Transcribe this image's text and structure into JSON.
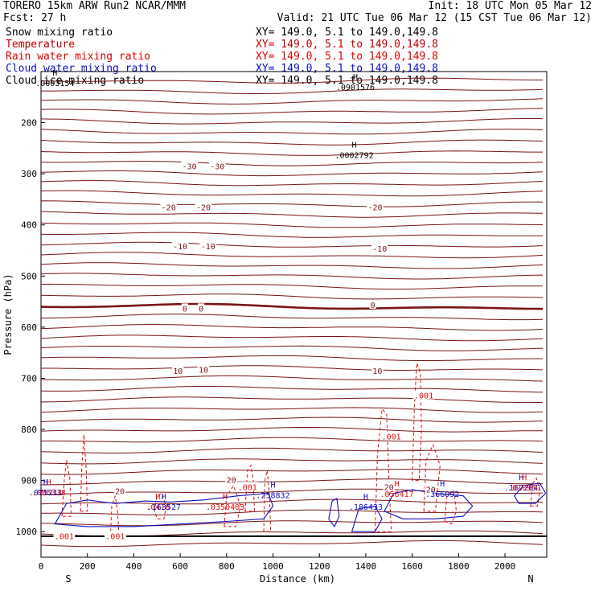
{
  "header": {
    "model": "TORERO   15km ARW   Run2    NCAR/MMM",
    "init": "Init: 18 UTC Mon 05 Mar 12",
    "fcst": "Fcst:   27 h",
    "valid": "Valid: 21 UTC Tue 06 Mar 12 (15 CST Tue 06 Mar 12)"
  },
  "legend": [
    {
      "name": "Snow mixing ratio",
      "range": "XY= 149.0,  5.1 to 149.0,149.8",
      "color": "#000000"
    },
    {
      "name": "Temperature",
      "range": "XY= 149.0,  5.1 to 149.0,149.8",
      "color": "#c00000"
    },
    {
      "name": "Rain water mixing ratio",
      "range": "XY= 149.0,  5.1 to 149.0,149.8",
      "color": "#e00000"
    },
    {
      "name": "Cloud water mixing ratio",
      "range": "XY= 149.0,  5.1 to 149.0,149.8",
      "color": "#1010c0"
    },
    {
      "name": "Cloud ice mixing ratio",
      "range": "XY= 149.0,  5.1 to 149.0,149.8",
      "color": "#000000"
    }
  ],
  "chart_data": {
    "type": "contour-cross-section",
    "xlabel": "Distance (km)",
    "ylabel": "Pressure (hPa)",
    "xlim": [
      0,
      2180
    ],
    "ylim": [
      1050,
      100
    ],
    "xticks": [
      0,
      200,
      400,
      600,
      800,
      1000,
      1200,
      1400,
      1600,
      1800,
      2000
    ],
    "yticks": [
      200,
      300,
      400,
      500,
      600,
      700,
      800,
      900,
      1000
    ],
    "x_end_labels": {
      "left": "S",
      "right": "N"
    },
    "colors": {
      "temperature": "#7a1414",
      "rain": "#e01010",
      "cloud_water": "#1010c0",
      "snow": "#000000",
      "ground": "#000000"
    },
    "isotherm_labels": [
      {
        "x": 640,
        "p": 285,
        "text": "-30"
      },
      {
        "x": 760,
        "p": 285,
        "text": "-30"
      },
      {
        "x": 550,
        "p": 365,
        "text": "-20"
      },
      {
        "x": 700,
        "p": 365,
        "text": "-20"
      },
      {
        "x": 1440,
        "p": 365,
        "text": "-20"
      },
      {
        "x": 600,
        "p": 441,
        "text": "-10"
      },
      {
        "x": 720,
        "p": 441,
        "text": "-10"
      },
      {
        "x": 1460,
        "p": 446,
        "text": "-10"
      },
      {
        "x": 620,
        "p": 563,
        "text": "0"
      },
      {
        "x": 690,
        "p": 563,
        "text": "0"
      },
      {
        "x": 1430,
        "p": 556,
        "text": "0"
      },
      {
        "x": 590,
        "p": 685,
        "text": "10"
      },
      {
        "x": 700,
        "p": 683,
        "text": "10"
      },
      {
        "x": 1450,
        "p": 685,
        "text": "10"
      },
      {
        "x": 340,
        "p": 920,
        "text": "20"
      },
      {
        "x": 820,
        "p": 898,
        "text": "20"
      },
      {
        "x": 1500,
        "p": 912,
        "text": "20"
      },
      {
        "x": 1680,
        "p": 917,
        "text": "20"
      }
    ],
    "rain_labels": [
      {
        "x": 1650,
        "p": 733,
        "text": ".001"
      },
      {
        "x": 1510,
        "p": 813,
        "text": ".001"
      },
      {
        "x": 890,
        "p": 912,
        "text": ".001"
      },
      {
        "x": 100,
        "p": 1008,
        "text": ".001"
      },
      {
        "x": 320,
        "p": 1008,
        "text": ".001"
      }
    ],
    "maxima": [
      {
        "x": 1355,
        "p": 122,
        "value": ".0901576",
        "kind": "snow"
      },
      {
        "x": 60,
        "p": 114,
        "value": ".0003154",
        "kind": "snow"
      },
      {
        "x": 1350,
        "p": 255,
        "value": ".0002792",
        "kind": "snow"
      },
      {
        "x": 20,
        "p": 915,
        "value": ".005338",
        "kind": "rain"
      },
      {
        "x": 20,
        "p": 915,
        "value": ".075211",
        "kind": "cloud_water"
      },
      {
        "x": 490,
        "p": 943,
        "value": ".0418",
        "kind": "rain"
      },
      {
        "x": 530,
        "p": 943,
        "value": ".163527",
        "kind": "cloud_water"
      },
      {
        "x": 780,
        "p": 943,
        "value": ".0350403",
        "kind": "rain"
      },
      {
        "x": 1000,
        "p": 920,
        "value": ".258832",
        "kind": "cloud_water"
      },
      {
        "x": 1400,
        "p": 943,
        "value": ".186433",
        "kind": "cloud_water"
      },
      {
        "x": 1520,
        "p": 918,
        "value": ".056417",
        "kind": "rain"
      },
      {
        "x": 1730,
        "p": 918,
        "value": ".366092",
        "kind": "cloud_water"
      },
      {
        "x": 2070,
        "p": 905,
        "value": ".167264",
        "kind": "cloud_water"
      },
      {
        "x": 2070,
        "p": 905,
        "value": ".010951",
        "kind": "rain"
      }
    ]
  }
}
